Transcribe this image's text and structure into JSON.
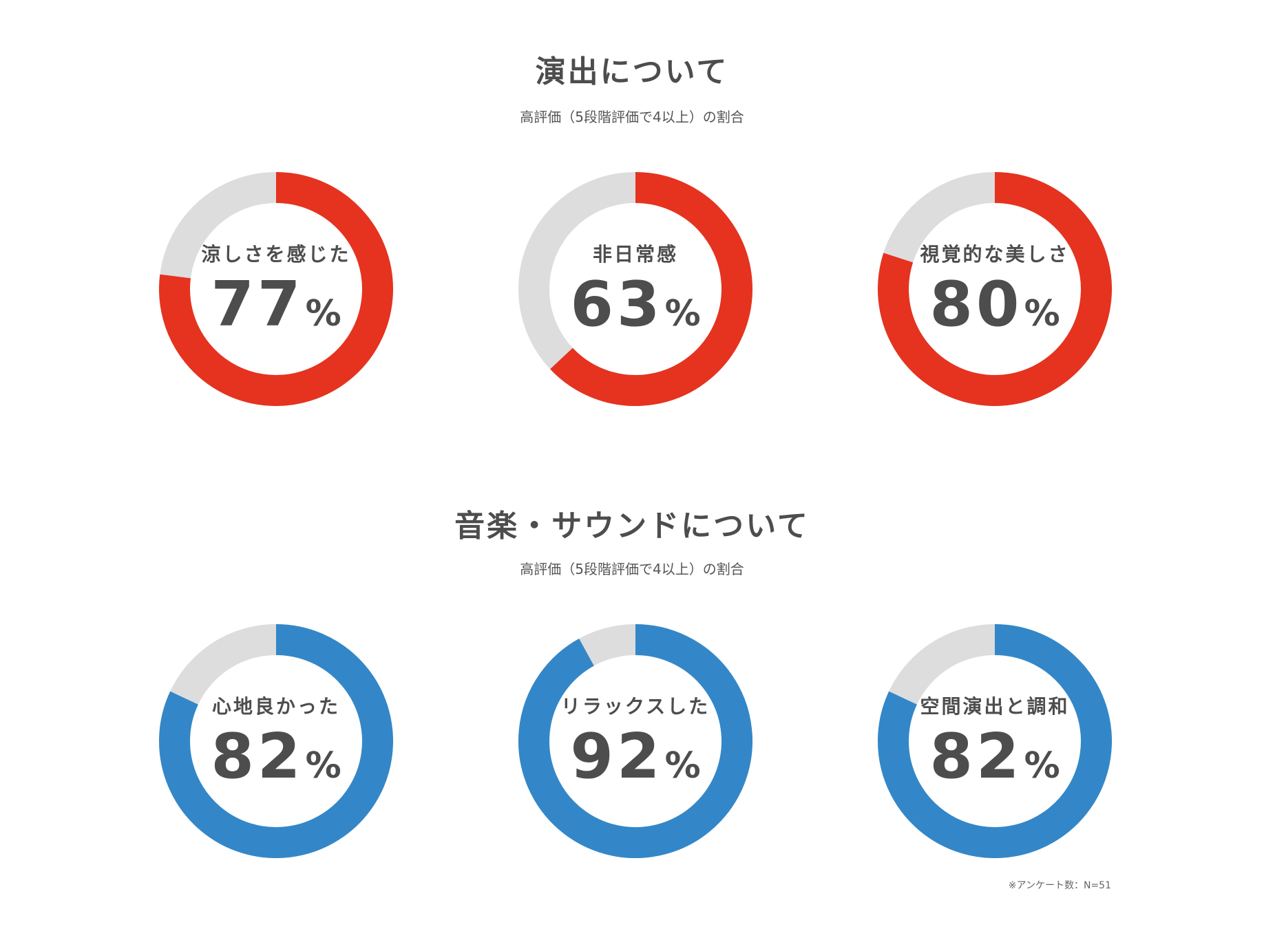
{
  "section1": {
    "title": "演出について",
    "subtitle": "高評価（5段階評価で4以上）の割合"
  },
  "section2": {
    "title": "音楽・サウンドについて",
    "subtitle": "高評価（5段階評価で4以上）の割合"
  },
  "colors": {
    "red": "#e5331f",
    "blue": "#3387c8",
    "gray": "#dddddd"
  },
  "chart_data": [
    {
      "type": "pie",
      "label": "涼しさを感じた",
      "value": 77,
      "display": "77",
      "unit": "%",
      "color": "#e5331f"
    },
    {
      "type": "pie",
      "label": "非日常感",
      "value": 63,
      "display": "63",
      "unit": "%",
      "color": "#e5331f"
    },
    {
      "type": "pie",
      "label": "視覚的な美しさ",
      "value": 80,
      "display": "80",
      "unit": "%",
      "color": "#e5331f"
    },
    {
      "type": "pie",
      "label": "心地良かった",
      "value": 82,
      "display": "82",
      "unit": "%",
      "color": "#3387c8"
    },
    {
      "type": "pie",
      "label": "リラックスした",
      "value": 92,
      "display": "92",
      "unit": "%",
      "color": "#3387c8"
    },
    {
      "type": "pie",
      "label": "空間演出と調和",
      "value": 82,
      "display": "82",
      "unit": "%",
      "color": "#3387c8"
    }
  ],
  "footnote": "※アンケート数：N=51"
}
